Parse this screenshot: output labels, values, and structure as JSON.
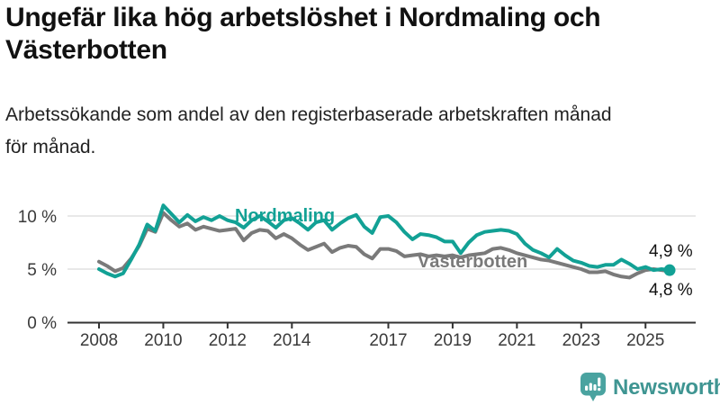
{
  "header": {
    "title_line1": "Ungefär lika hög arbetslöshet i Nordmaling och",
    "title_line2": "Västerbotten",
    "subtitle_line1": "Arbetssökande som andel av den registerbaserade arbetskraften månad",
    "subtitle_line2": "för månad."
  },
  "footer": {
    "brand": "Newsworthy",
    "logo_icon": "bar-chart-speech-bubble-icon",
    "icon_color": "#4aa3a0",
    "text_color": "#3f9592"
  },
  "chart_data": {
    "type": "line",
    "x_start": 2008.0,
    "x_step": 0.25,
    "x_end": 2025.75,
    "ylim": [
      0,
      11.5
    ],
    "grid": "horizontal",
    "legend_position": "inline-labels",
    "xticks": [
      2008,
      2010,
      2012,
      2014,
      2017,
      2019,
      2021,
      2023,
      2025
    ],
    "yticks": [
      {
        "value": 0,
        "label": "0 %"
      },
      {
        "value": 5,
        "label": "5 %"
      },
      {
        "value": 10,
        "label": "10 %"
      }
    ],
    "ygrid": [
      5,
      10
    ],
    "colors": {
      "grid": "#e0e0e0",
      "axis": "#333333",
      "tick_label": "#3a3a3a",
      "annotation": "#111111"
    },
    "series": [
      {
        "id": "vasterbotten",
        "label": "Västerbotten",
        "color": "#7a7a7a",
        "values": [
          5.7,
          5.3,
          4.8,
          5.1,
          6.0,
          7.2,
          8.8,
          8.5,
          10.3,
          9.6,
          9.0,
          9.3,
          8.7,
          9.0,
          8.8,
          8.6,
          8.7,
          8.8,
          7.7,
          8.4,
          8.7,
          8.6,
          7.9,
          8.3,
          7.9,
          7.3,
          6.8,
          7.1,
          7.4,
          6.6,
          7.0,
          7.2,
          7.1,
          6.4,
          6.0,
          6.9,
          6.9,
          6.7,
          6.2,
          6.3,
          6.4,
          6.2,
          6.3,
          6.2,
          6.3,
          6.1,
          6.3,
          6.4,
          6.5,
          6.9,
          7.0,
          6.8,
          6.5,
          6.3,
          6.1,
          5.9,
          5.8,
          5.6,
          5.4,
          5.2,
          5.0,
          4.7,
          4.7,
          4.8,
          4.5,
          4.3,
          4.2,
          4.6,
          4.9,
          5.0,
          4.9,
          4.8
        ]
      },
      {
        "id": "nordmaling",
        "label": "Nordmaling",
        "color": "#12a195",
        "values": [
          5.0,
          4.6,
          4.3,
          4.6,
          5.9,
          7.3,
          9.2,
          8.6,
          11.0,
          10.2,
          9.4,
          10.1,
          9.5,
          9.9,
          9.6,
          10.0,
          9.6,
          9.4,
          8.9,
          9.6,
          10.0,
          9.5,
          8.9,
          9.6,
          9.8,
          9.3,
          8.7,
          9.4,
          9.6,
          8.7,
          9.3,
          9.8,
          10.1,
          9.0,
          8.4,
          9.9,
          10.0,
          9.4,
          8.5,
          7.8,
          8.3,
          8.2,
          8.0,
          7.6,
          7.6,
          6.5,
          7.5,
          8.2,
          8.5,
          8.6,
          8.7,
          8.6,
          8.3,
          7.4,
          6.8,
          6.5,
          6.1,
          6.9,
          6.3,
          5.8,
          5.6,
          5.3,
          5.2,
          5.4,
          5.4,
          5.9,
          5.5,
          5.0,
          5.2,
          4.9,
          5.0,
          4.9
        ]
      }
    ],
    "end_labels": [
      {
        "text": "4,9 %",
        "series": "nordmaling"
      },
      {
        "text": "4,8 %",
        "series": "vasterbotten"
      }
    ],
    "end_dot_series": "nordmaling"
  }
}
